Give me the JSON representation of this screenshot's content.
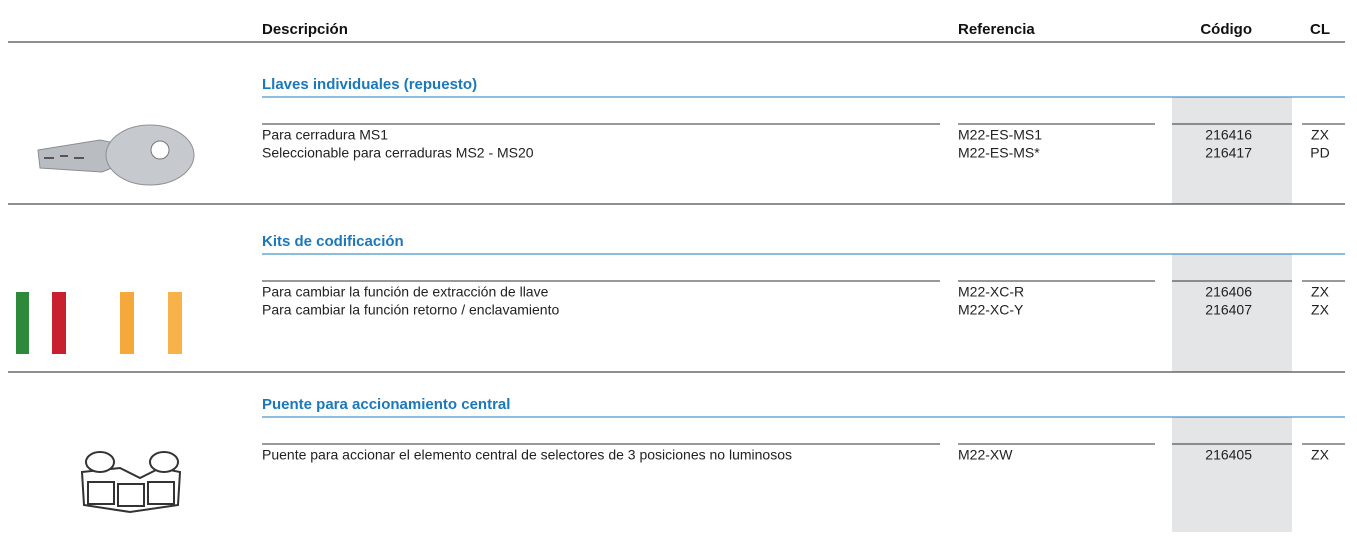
{
  "header": {
    "columns": [
      "Descripción",
      "Referencia",
      "Código",
      "CL"
    ]
  },
  "sections": [
    {
      "title": "Llaves individuales (repuesto)",
      "rows": [
        [
          "Para cerradura MS1",
          "M22-ES-MS1",
          "216416",
          "ZX"
        ],
        [
          "Seleccionable para cerraduras MS2 - MS20",
          "M22-ES-MS*",
          "216417",
          "PD"
        ]
      ]
    },
    {
      "title": "Kits de codificación",
      "rows": [
        [
          "Para cambiar la función de extracción de llave",
          "M22-XC-R",
          "216406",
          "ZX"
        ],
        [
          "Para cambiar la función retorno / enclavamiento",
          "M22-XC-Y",
          "216407",
          "ZX"
        ]
      ]
    },
    {
      "title": "Puente para accionamiento central",
      "rows": [
        [
          "Puente para accionar el elemento central de selectores de 3 posiciones no luminosos",
          "M22-XW",
          "216405",
          "ZX"
        ]
      ]
    }
  ]
}
